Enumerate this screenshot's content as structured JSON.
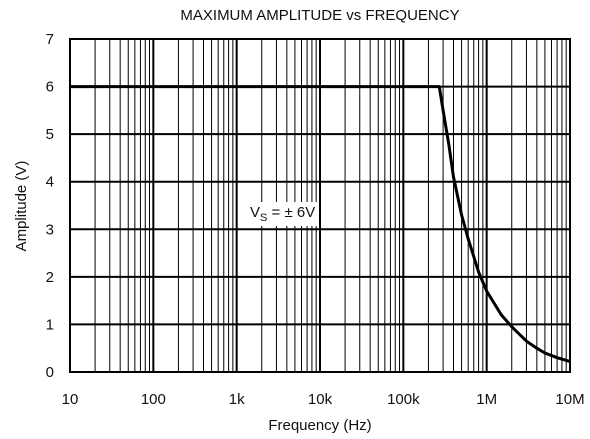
{
  "chart_data": {
    "type": "line",
    "title": "MAXIMUM AMPLITUDE vs FREQUENCY",
    "xlabel": "Frequency (Hz)",
    "ylabel": "Amplitude (V)",
    "x_scale": "log",
    "xlim": [
      10,
      10000000
    ],
    "ylim": [
      0,
      7
    ],
    "x_ticks": [
      10,
      100,
      1000,
      10000,
      100000,
      1000000,
      10000000
    ],
    "x_tick_labels": [
      "10",
      "100",
      "1k",
      "10k",
      "100k",
      "1M",
      "10M"
    ],
    "y_ticks": [
      0,
      1,
      2,
      3,
      4,
      5,
      6,
      7
    ],
    "y_tick_labels": [
      "0",
      "1",
      "2",
      "3",
      "4",
      "5",
      "6",
      "7"
    ],
    "grid": true,
    "annotation": {
      "main": "V",
      "sub": "S",
      "rest": " = ± 6V"
    },
    "series": [
      {
        "color": "#000000",
        "x": [
          10,
          100,
          1000,
          10000,
          100000,
          200000,
          270000,
          300000,
          350000,
          400000,
          500000,
          600000,
          800000,
          1000000,
          1500000,
          2000000,
          3000000,
          4000000,
          5000000,
          7000000,
          10000000
        ],
        "y": [
          6,
          6,
          6,
          6,
          6,
          6,
          6,
          5.5,
          4.8,
          4.1,
          3.3,
          2.8,
          2.1,
          1.7,
          1.2,
          0.95,
          0.65,
          0.5,
          0.4,
          0.3,
          0.22
        ]
      }
    ]
  }
}
